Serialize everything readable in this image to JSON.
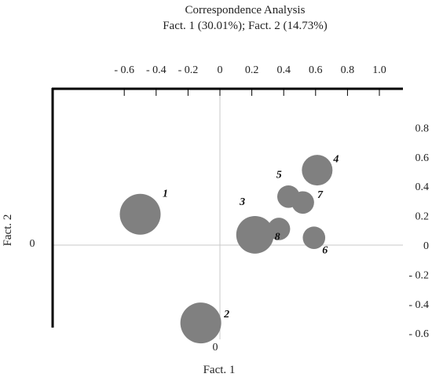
{
  "chart_data": {
    "type": "scatter",
    "title": "Correspondence Analysis",
    "subtitle": "Fact. 1 (30.01%); Fact. 2 (14.73%)",
    "xlabel": "Fact. 1",
    "ylabel": "Fact. 2",
    "x_ticks": [
      "- 0.6",
      "- 0.4",
      "- 0.2",
      "0",
      "0.2",
      "0.4",
      "0.6",
      "0.8",
      "1.0"
    ],
    "x_tick_values": [
      -0.6,
      -0.4,
      -0.2,
      0,
      0.2,
      0.4,
      0.6,
      0.8,
      1.0
    ],
    "y_ticks": [
      "0.8",
      "0.6",
      "0.4",
      "0.2",
      "0",
      "- 0.2",
      "- 0.4",
      "- 0.6"
    ],
    "y_tick_values": [
      0.8,
      0.6,
      0.4,
      0.2,
      0,
      -0.2,
      -0.4,
      -0.6
    ],
    "x_zero_label": "0",
    "y_zero_label": "0",
    "xlim": [
      -0.78,
      1.1
    ],
    "ylim": [
      -0.68,
      0.98
    ],
    "bubble_color": "#808080",
    "points": [
      {
        "label": "1",
        "x": -0.5,
        "y": 0.21,
        "size": 1.0
      },
      {
        "label": "2",
        "x": -0.12,
        "y": -0.53,
        "size": 1.0
      },
      {
        "label": "3",
        "x": 0.22,
        "y": 0.07,
        "size": 0.92
      },
      {
        "label": "4",
        "x": 0.61,
        "y": 0.51,
        "size": 0.75
      },
      {
        "label": "5",
        "x": 0.43,
        "y": 0.33,
        "size": 0.55
      },
      {
        "label": "6",
        "x": 0.59,
        "y": 0.05,
        "size": 0.55
      },
      {
        "label": "7",
        "x": 0.52,
        "y": 0.29,
        "size": 0.55
      },
      {
        "label": "8",
        "x": 0.37,
        "y": 0.11,
        "size": 0.55
      }
    ]
  }
}
